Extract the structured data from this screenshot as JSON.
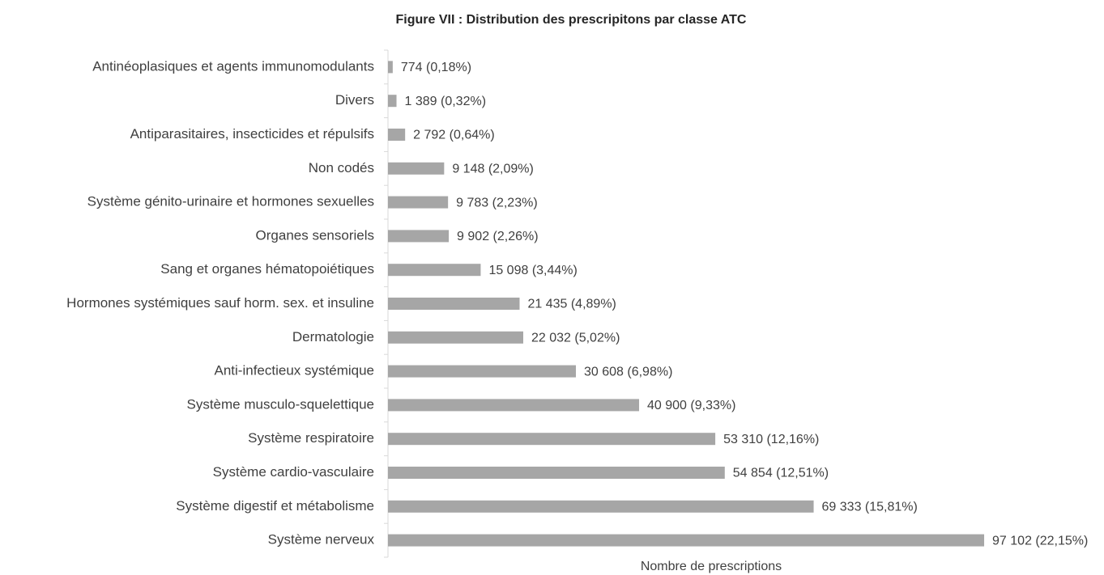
{
  "chart_data": {
    "type": "barh",
    "title": "Figure VII : Distribution des prescripitons par classe ATC",
    "x_label": "Nombre de prescriptions",
    "categories": [
      "Antinéoplasiques et agents immunomodulants",
      "Divers",
      "Antiparasitaires, insecticides et répulsifs",
      "Non codés",
      "Système génito-urinaire et hormones sexuelles",
      "Organes sensoriels",
      "Sang et organes hématopoiétiques",
      "Hormones systémiques sauf horm. sex. et insuline",
      "Dermatologie",
      "Anti-infectieux systémique",
      "Système musculo-squelettique",
      "Système respiratoire",
      "Système cardio-vasculaire",
      "Système digestif et métabolisme",
      "Système nerveux"
    ],
    "values": [
      774,
      1389,
      2792,
      9148,
      9783,
      9902,
      15098,
      21435,
      22032,
      30608,
      40900,
      53310,
      54854,
      69333,
      97102
    ],
    "value_labels": [
      "774 (0,18%)",
      "1 389 (0,32%)",
      "2 792 (0,64%)",
      "9 148 (2,09%)",
      "9 783 (2,23%)",
      "9 902 (2,26%)",
      "15 098 (3,44%)",
      "21 435 (4,89%)",
      "22 032 (5,02%)",
      "30 608 (6,98%)",
      "40 900 (9,33%)",
      "53 310 (12,16%)",
      "54 854 (12,51%)",
      "69 333 (15,81%)",
      "97 102 (22,15%)"
    ],
    "color": "#a6a6a6",
    "xlim": [
      0,
      100000
    ]
  }
}
